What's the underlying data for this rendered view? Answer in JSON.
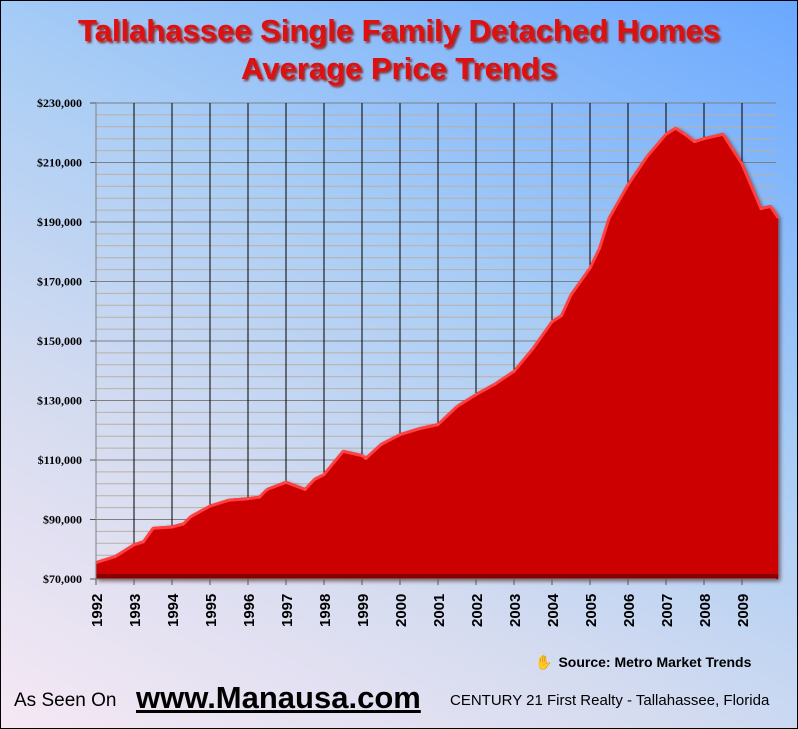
{
  "chart_data": {
    "type": "area",
    "title": [
      "Tallahassee Single Family Detached Homes",
      "Average Price Trends"
    ],
    "xlabel": "",
    "ylabel": "",
    "ylim": [
      70000,
      230000
    ],
    "xlim": [
      1992,
      2010
    ],
    "y_ticks": [
      70000,
      90000,
      110000,
      130000,
      150000,
      170000,
      190000,
      210000,
      230000
    ],
    "y_tick_labels": [
      "$70,000",
      "$90,000",
      "$110,000",
      "$130,000",
      "$150,000",
      "$170,000",
      "$190,000",
      "$210,000",
      "$230,000"
    ],
    "x_tick_labels": [
      "1992",
      "1993",
      "1994",
      "1995",
      "1996",
      "1997",
      "1998",
      "1999",
      "2000",
      "2001",
      "2002",
      "2003",
      "2004",
      "2005",
      "2006",
      "2007",
      "2008",
      "2009"
    ],
    "grid": true,
    "color": "#cc0000",
    "x": [
      1992,
      1992.5,
      1993,
      1993.25,
      1993.5,
      1994,
      1994.3,
      1994.5,
      1995,
      1995.5,
      1996,
      1996.3,
      1996.5,
      1997,
      1997.5,
      1997.75,
      1998,
      1998.5,
      1999,
      1999.1,
      1999.5,
      2000,
      2000.5,
      2001,
      2001.5,
      2002,
      2002.5,
      2003,
      2003.5,
      2004,
      2004.25,
      2004.5,
      2005,
      2005.25,
      2005.5,
      2006,
      2006.5,
      2007,
      2007.25,
      2007.5,
      2007.75,
      2008,
      2008.5,
      2008.75,
      2009,
      2009.5,
      2009.75,
      2009.95
    ],
    "values": [
      76000,
      78000,
      82000,
      83000,
      87500,
      88000,
      89000,
      91500,
      95000,
      97000,
      97500,
      98000,
      100600,
      103000,
      100600,
      104000,
      105600,
      113400,
      112000,
      111000,
      115700,
      119000,
      121000,
      122400,
      128500,
      132500,
      136000,
      140300,
      148000,
      157000,
      159000,
      166000,
      175000,
      181600,
      191700,
      203000,
      212500,
      220000,
      222000,
      220000,
      217500,
      218500,
      220000,
      215000,
      210000,
      195000,
      195700,
      192000
    ]
  },
  "footer": {
    "source": "Source:  Metro Market Trends",
    "source_icon": "hand-icon",
    "as_seen_on": "As Seen On",
    "website": "www.Manausa.com",
    "company": "CENTURY 21 First Realty - Tallahassee, Florida"
  }
}
